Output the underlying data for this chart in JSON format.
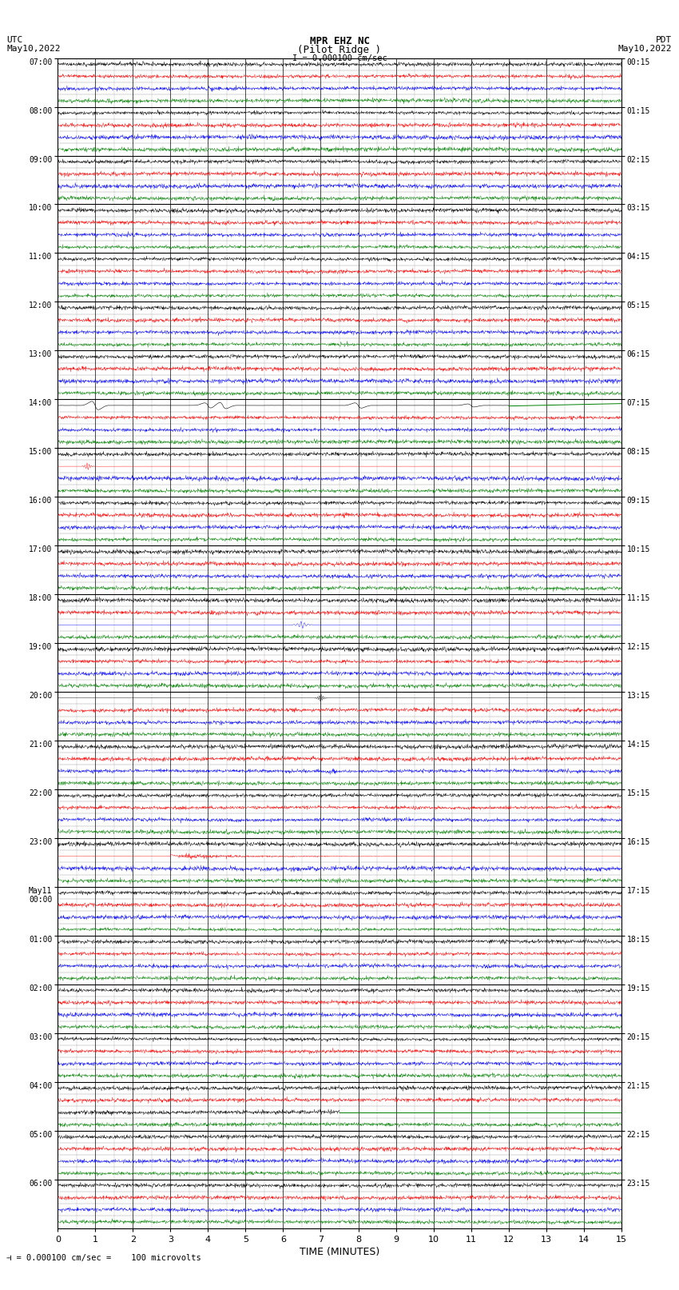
{
  "title_line1": "MPR EHZ NC",
  "title_line2": "(Pilot Ridge )",
  "title_line3": "I = 0.000100 cm/sec",
  "left_label_top": "UTC",
  "left_label_date": "May10,2022",
  "right_label_top": "PDT",
  "right_label_date": "May10,2022",
  "bottom_note": "= 0.000100 cm/sec =    100 microvolts",
  "xlabel": "TIME (MINUTES)",
  "utc_hour_labels": [
    "07:00",
    "08:00",
    "09:00",
    "10:00",
    "11:00",
    "12:00",
    "13:00",
    "14:00",
    "15:00",
    "16:00",
    "17:00",
    "18:00",
    "19:00",
    "20:00",
    "21:00",
    "22:00",
    "23:00",
    "May11\n00:00",
    "01:00",
    "02:00",
    "03:00",
    "04:00",
    "05:00",
    "06:00"
  ],
  "pdt_hour_labels": [
    "00:15",
    "01:15",
    "02:15",
    "03:15",
    "04:15",
    "05:15",
    "06:15",
    "07:15",
    "08:15",
    "09:15",
    "10:15",
    "11:15",
    "12:15",
    "13:15",
    "14:15",
    "15:15",
    "16:15",
    "17:15",
    "18:15",
    "19:15",
    "20:15",
    "21:15",
    "22:15",
    "23:15"
  ],
  "n_hours": 24,
  "subrows_per_hour": 4,
  "n_minutes": 15,
  "bg_color": "#ffffff",
  "major_grid_color": "#000000",
  "minor_grid_color": "#999999",
  "figwidth": 8.5,
  "figheight": 16.13
}
